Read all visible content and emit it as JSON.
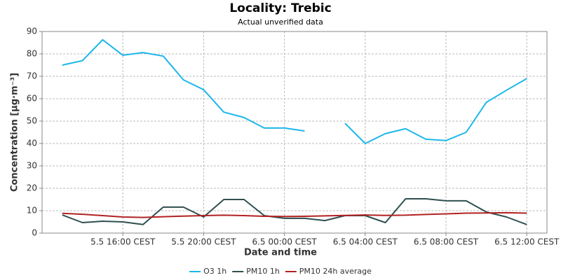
{
  "chart_data": {
    "type": "line",
    "title": "Locality: Trebic",
    "subtitle": "Actual unverified data",
    "x_label": "Date and time",
    "y_label": "Concentration [µg·m⁻³]",
    "x": [
      "5.5 13:00 CEST",
      "5.5 14:00 CEST",
      "5.5 15:00 CEST",
      "5.5 16:00 CEST",
      "5.5 17:00 CEST",
      "5.5 18:00 CEST",
      "5.5 19:00 CEST",
      "5.5 20:00 CEST",
      "5.5 21:00 CEST",
      "5.5 22:00 CEST",
      "5.5 23:00 CEST",
      "6.5 00:00 CEST",
      "6.5 01:00 CEST",
      "6.5 02:00 CEST",
      "6.5 03:00 CEST",
      "6.5 04:00 CEST",
      "6.5 05:00 CEST",
      "6.5 06:00 CEST",
      "6.5 07:00 CEST",
      "6.5 08:00 CEST",
      "6.5 09:00 CEST",
      "6.5 10:00 CEST",
      "6.5 11:00 CEST",
      "6.5 12:00 CEST"
    ],
    "series": [
      {
        "name": "O3 1h",
        "color": "#1db7e9",
        "values": [
          75,
          77,
          86.3,
          79.4,
          80.6,
          79,
          68.4,
          64,
          54,
          51.6,
          46.9,
          46.9,
          45.6,
          null,
          49,
          40,
          44.4,
          46.6,
          41.9,
          41.3,
          45,
          58.4,
          63.8,
          69
        ]
      },
      {
        "name": "PM10 1h",
        "color": "#2f4f4f",
        "values": [
          8.1,
          4.7,
          5.3,
          5,
          3.8,
          11.6,
          11.6,
          7.2,
          15,
          15,
          7.8,
          6.6,
          6.6,
          5.6,
          7.8,
          7.8,
          4.7,
          15.3,
          15.3,
          14.4,
          14.4,
          9.4,
          7.2,
          3.8
        ]
      },
      {
        "name": "PM10 24h average",
        "color": "#b22222",
        "values": [
          8.8,
          8.4,
          7.8,
          7.2,
          7.0,
          7.3,
          7.6,
          7.8,
          8.0,
          7.8,
          7.5,
          7.4,
          7.5,
          7.7,
          7.9,
          8.1,
          7.9,
          8.0,
          8.3,
          8.6,
          8.9,
          9.0,
          9.1,
          8.9
        ]
      }
    ],
    "xlim": [
      "5.5 12:00 CEST",
      "6.5 13:00 CEST"
    ],
    "xticks": [
      "5.5 16:00 CEST",
      "5.5 20:00 CEST",
      "6.5 00:00 CEST",
      "6.5 04:00 CEST",
      "6.5 08:00 CEST",
      "6.5 12:00 CEST"
    ],
    "ylim": [
      0,
      90
    ],
    "yticks": [
      0,
      10,
      20,
      30,
      40,
      50,
      60,
      70,
      80,
      90
    ],
    "grid": true,
    "legend": "bottom"
  }
}
